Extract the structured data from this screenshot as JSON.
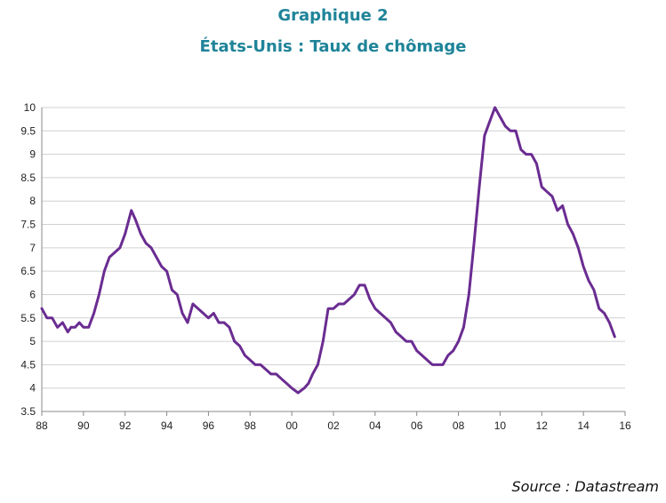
{
  "header": {
    "title": "Graphique 2",
    "subtitle": "États-Unis : Taux de chômage"
  },
  "footer": {
    "source": "Source : Datastream"
  },
  "chart_data": {
    "type": "line",
    "title": "États-Unis : Taux de chômage",
    "xlabel": "",
    "ylabel": "",
    "xlim": [
      1988,
      2016
    ],
    "ylim": [
      3.5,
      10
    ],
    "grid": true,
    "line_color": "#6a2c91",
    "x_ticks": [
      "88",
      "90",
      "92",
      "94",
      "96",
      "98",
      "00",
      "02",
      "04",
      "06",
      "08",
      "10",
      "12",
      "14",
      "16"
    ],
    "y_ticks": [
      "3.5",
      "4",
      "4.5",
      "5",
      "5.5",
      "6",
      "6.5",
      "7",
      "7.5",
      "8",
      "8.5",
      "9",
      "9.5",
      "10"
    ],
    "series": [
      {
        "x": [
          1988.0,
          1988.25,
          1988.5,
          1988.75,
          1989.0,
          1989.25,
          1989.4,
          1989.6,
          1989.8,
          1990.0,
          1990.25,
          1990.5,
          1990.75,
          1991.0,
          1991.25,
          1991.5,
          1991.75,
          1992.0,
          1992.3,
          1992.5,
          1992.75,
          1993.0,
          1993.25,
          1993.5,
          1993.75,
          1994.0,
          1994.25,
          1994.5,
          1994.75,
          1995.0,
          1995.25,
          1995.5,
          1995.75,
          1996.0,
          1996.25,
          1996.5,
          1996.75,
          1997.0,
          1997.25,
          1997.5,
          1997.75,
          1998.0,
          1998.25,
          1998.5,
          1998.75,
          1999.0,
          1999.25,
          1999.5,
          1999.75,
          2000.0,
          2000.3,
          2000.6,
          2000.8,
          2001.0,
          2001.25,
          2001.5,
          2001.75,
          2002.0,
          2002.25,
          2002.5,
          2002.75,
          2003.0,
          2003.25,
          2003.5,
          2003.75,
          2004.0,
          2004.25,
          2004.5,
          2004.75,
          2005.0,
          2005.25,
          2005.5,
          2005.75,
          2006.0,
          2006.25,
          2006.5,
          2006.75,
          2007.0,
          2007.25,
          2007.5,
          2007.75,
          2008.0,
          2008.25,
          2008.5,
          2008.75,
          2009.0,
          2009.25,
          2009.5,
          2009.75,
          2010.0,
          2010.25,
          2010.5,
          2010.75,
          2011.0,
          2011.25,
          2011.5,
          2011.75,
          2012.0,
          2012.25,
          2012.5,
          2012.75,
          2013.0,
          2013.25,
          2013.5,
          2013.75,
          2014.0,
          2014.25,
          2014.5,
          2014.75,
          2015.0,
          2015.25,
          2015.5
        ],
        "values": [
          5.7,
          5.5,
          5.5,
          5.3,
          5.4,
          5.2,
          5.3,
          5.3,
          5.4,
          5.3,
          5.3,
          5.6,
          6.0,
          6.5,
          6.8,
          6.9,
          7.0,
          7.3,
          7.8,
          7.6,
          7.3,
          7.1,
          7.0,
          6.8,
          6.6,
          6.5,
          6.1,
          6.0,
          5.6,
          5.4,
          5.8,
          5.7,
          5.6,
          5.5,
          5.6,
          5.4,
          5.4,
          5.3,
          5.0,
          4.9,
          4.7,
          4.6,
          4.5,
          4.5,
          4.4,
          4.3,
          4.3,
          4.2,
          4.1,
          4.0,
          3.9,
          4.0,
          4.1,
          4.3,
          4.5,
          5.0,
          5.7,
          5.7,
          5.8,
          5.8,
          5.9,
          6.0,
          6.2,
          6.2,
          5.9,
          5.7,
          5.6,
          5.5,
          5.4,
          5.2,
          5.1,
          5.0,
          5.0,
          4.8,
          4.7,
          4.6,
          4.5,
          4.5,
          4.5,
          4.7,
          4.8,
          5.0,
          5.3,
          6.0,
          7.1,
          8.3,
          9.4,
          9.7,
          10.0,
          9.8,
          9.6,
          9.5,
          9.5,
          9.1,
          9.0,
          9.0,
          8.8,
          8.3,
          8.2,
          8.1,
          7.8,
          7.9,
          7.5,
          7.3,
          7.0,
          6.6,
          6.3,
          6.1,
          5.7,
          5.6,
          5.4,
          5.1
        ]
      }
    ]
  }
}
